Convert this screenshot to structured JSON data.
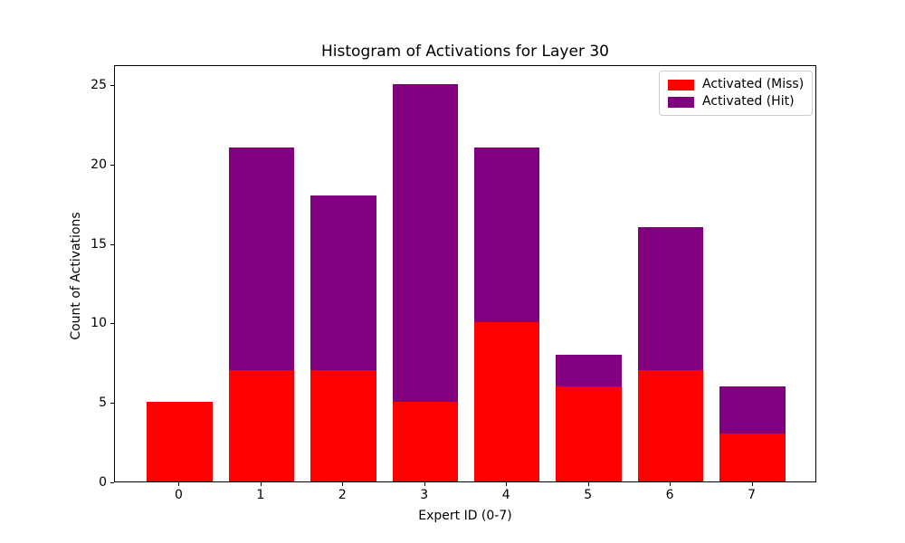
{
  "figure": {
    "title": "Histogram of Activations for Layer 30",
    "xlabel": "Expert ID (0-7)",
    "ylabel": "Count of Activations"
  },
  "legend": {
    "items": [
      {
        "label": "Activated (Miss)",
        "color": "#ff0000"
      },
      {
        "label": "Activated (Hit)",
        "color": "#800080"
      }
    ]
  },
  "chart_data": {
    "type": "bar",
    "stacked": true,
    "title": "Histogram of Activations for Layer 30",
    "xlabel": "Expert ID (0-7)",
    "ylabel": "Count of Activations",
    "categories": [
      "0",
      "1",
      "2",
      "3",
      "4",
      "5",
      "6",
      "7"
    ],
    "series": [
      {
        "name": "Activated (Miss)",
        "color": "#ff0000",
        "values": [
          5,
          7,
          7,
          5,
          10,
          6,
          7,
          3
        ]
      },
      {
        "name": "Activated (Hit)",
        "color": "#800080",
        "values": [
          0,
          14,
          11,
          20,
          11,
          2,
          9,
          3
        ]
      }
    ],
    "stack_totals": [
      5,
      21,
      18,
      25,
      21,
      8,
      16,
      6
    ],
    "yticks": [
      0,
      5,
      10,
      15,
      20,
      25
    ],
    "ylim": [
      0,
      26.25
    ],
    "xlim": [
      -0.79,
      7.79
    ],
    "bar_width": 0.8,
    "legend_position": "upper right",
    "grid": false,
    "background_color": "#ffffff",
    "spine_color": "#000000"
  }
}
